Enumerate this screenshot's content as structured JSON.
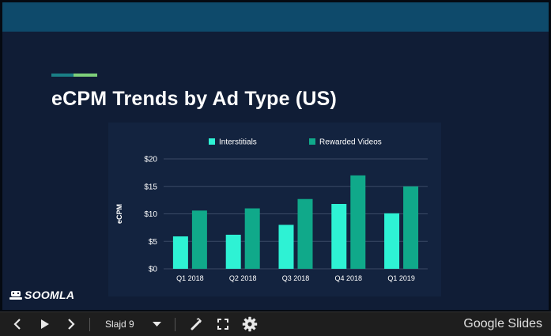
{
  "slide": {
    "title": "eCPM Trends by Ad Type (US)",
    "logo_text": "SOOMLA"
  },
  "chart_data": {
    "type": "bar",
    "categories": [
      "Q1 2018",
      "Q2 2018",
      "Q3 2018",
      "Q4 2018",
      "Q1 2019"
    ],
    "series": [
      {
        "name": "Interstitials",
        "values": [
          5.9,
          6.2,
          8.0,
          11.8,
          10.1
        ],
        "color": "#2ef2d4"
      },
      {
        "name": "Rewarded Videos",
        "values": [
          10.6,
          11.0,
          12.7,
          17.0,
          15.0
        ],
        "color": "#10a98a"
      }
    ],
    "title": "",
    "xlabel": "",
    "ylabel": "eCPM",
    "ylim": [
      0,
      20
    ],
    "yticks": [
      0,
      5,
      10,
      15,
      20
    ],
    "ytick_labels": [
      "$0",
      "$5",
      "$10",
      "$15",
      "$20"
    ],
    "grid": true,
    "legend_position": "top"
  },
  "toolbar": {
    "prev_icon": "chevron-left-icon",
    "play_icon": "play-icon",
    "next_icon": "chevron-right-icon",
    "slide_label": "Slajd 9",
    "dropdown_icon": "caret-down-icon",
    "pointer_icon": "laser-pointer-icon",
    "fullscreen_icon": "fullscreen-icon",
    "settings_icon": "gear-icon",
    "brand": "Google Slides"
  }
}
